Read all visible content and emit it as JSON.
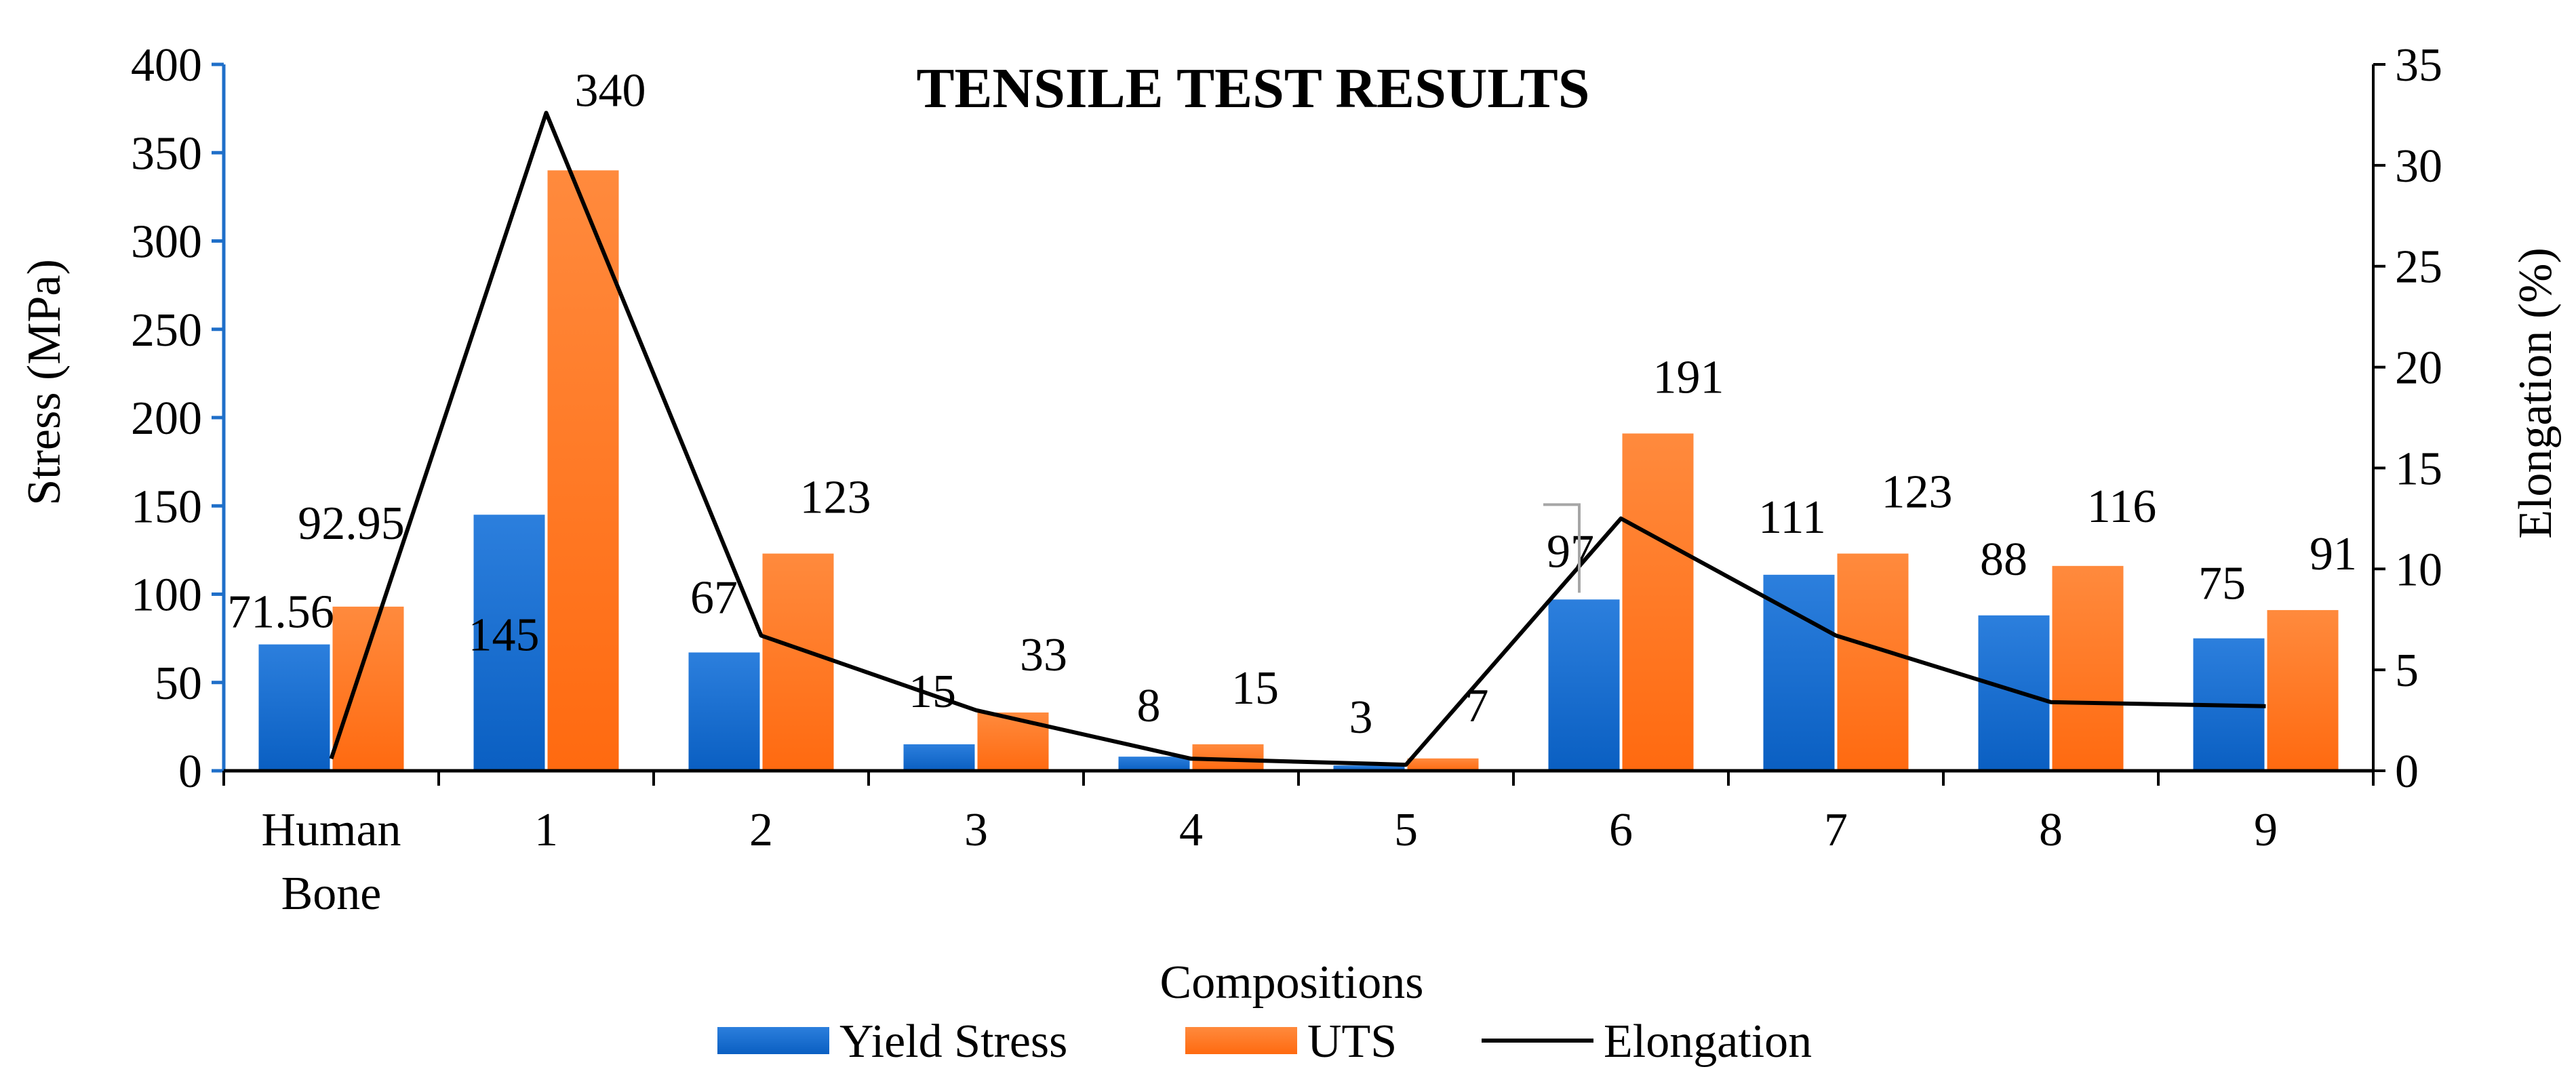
{
  "chart_data": {
    "type": "bar",
    "title": "TENSILE TEST RESULTS",
    "xlabel": "Compositions",
    "ylabel": "Stress (MPa)",
    "y2label": "Elongation (%)",
    "ylim": [
      0,
      400
    ],
    "y2lim": [
      0,
      35
    ],
    "yticks": [
      "0",
      "50",
      "100",
      "150",
      "200",
      "250",
      "300",
      "350",
      "400"
    ],
    "y2ticks": [
      "0",
      "5",
      "10",
      "15",
      "20",
      "25",
      "30",
      "35"
    ],
    "categories": [
      [
        "Human",
        "Bone"
      ],
      [
        "1"
      ],
      [
        "2"
      ],
      [
        "3"
      ],
      [
        "4"
      ],
      [
        "5"
      ],
      [
        "6"
      ],
      [
        "7"
      ],
      [
        "8"
      ],
      [
        "9"
      ]
    ],
    "series": [
      {
        "name": "Yield Stress",
        "type": "bar",
        "axis": "left",
        "color": "#1565C0",
        "values": [
          71.56,
          145,
          67,
          15,
          8,
          3,
          97,
          111,
          88,
          75
        ],
        "labels": [
          "71.56",
          "145",
          "67",
          "15",
          "8",
          "3",
          "97",
          "111",
          "88",
          "75"
        ]
      },
      {
        "name": "UTS",
        "type": "bar",
        "axis": "left",
        "color": "#FF6F1A",
        "values": [
          92.95,
          340,
          123,
          33,
          15,
          7,
          191,
          123,
          116,
          91
        ],
        "labels": [
          "92.95",
          "340",
          "123",
          "33",
          "15",
          "7",
          "191",
          "123",
          "116",
          "91"
        ]
      },
      {
        "name": "Elongation",
        "type": "line",
        "axis": "right",
        "color": "#000000",
        "values": [
          0.6,
          32.6,
          6.7,
          3.0,
          0.6,
          0.3,
          12.5,
          6.7,
          3.4,
          3.2
        ]
      }
    ],
    "legend": {
      "position": "bottom"
    }
  }
}
